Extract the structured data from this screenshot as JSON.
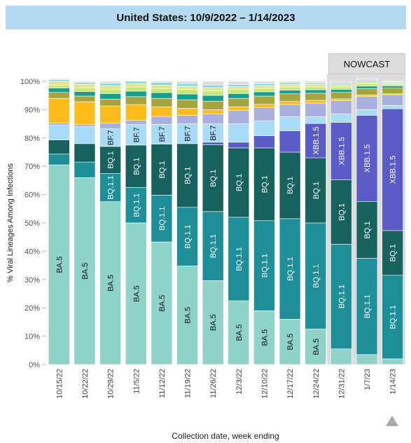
{
  "header": {
    "title": "United States: 10/9/2022 – 1/14/2023"
  },
  "nowcast_label": "NOWCAST",
  "colors": {
    "BA.5": "#8fd3c8",
    "BQ.1.1": "#1e8e98",
    "BQ.1": "#17615f",
    "XBB.1.5": "#5a5bc6",
    "BF.7": "#a8dcf6",
    "other1": "#aab0de",
    "other2": "#fdbc1c",
    "other3": "#a7a43d",
    "other4": "#169e8c",
    "other5": "#c6e87a",
    "other6": "#e3e58a",
    "other7": "#7fd7e5",
    "other8": "#dddddd",
    "nowcast_bg": "#dcdcdc"
  },
  "chart_data": {
    "type": "bar",
    "stacked": true,
    "ylabel": "% Viral Lineages Among Infections",
    "xlabel": "Collection date, week ending",
    "ylim": [
      0,
      100
    ],
    "yticks": [
      "0%",
      "10%",
      "20%",
      "30%",
      "40%",
      "50%",
      "60%",
      "70%",
      "80%",
      "90%",
      "100%"
    ],
    "categories": [
      "10/15/22",
      "10/22/22",
      "10/29/22",
      "11/5/22",
      "11/12/22",
      "11/19/22",
      "11/26/22",
      "12/3/22",
      "12/10/22",
      "12/17/22",
      "12/24/22",
      "12/31/22",
      "1/7/23",
      "1/14/23"
    ],
    "nowcast_start_index": 11,
    "series": [
      {
        "key": "BA.5",
        "values": [
          70.5,
          66.0,
          57.5,
          50.0,
          43.3,
          34.8,
          29.6,
          22.5,
          19.0,
          16.0,
          12.5,
          5.5,
          3.5,
          2.0
        ],
        "label": "BA.5",
        "label_from": 0,
        "label_to": 10
      },
      {
        "key": "BQ.1.1",
        "values": [
          3.8,
          5.5,
          10.0,
          12.5,
          16.5,
          20.7,
          24.4,
          29.5,
          31.8,
          35.5,
          37.5,
          37.0,
          34.0,
          29.5
        ],
        "label": "BQ.1.1",
        "label_from": 2,
        "label_to": 13
      },
      {
        "key": "BQ.1",
        "values": [
          5.0,
          6.5,
          9.5,
          15.0,
          18.0,
          22.5,
          23.6,
          24.5,
          25.7,
          23.5,
          23.0,
          22.7,
          20.0,
          15.8
        ],
        "label": "BQ.1",
        "label_from": 2,
        "label_to": 13
      },
      {
        "key": "XBB.1.5",
        "values": [
          0,
          0,
          0,
          0,
          0,
          0,
          0.9,
          2.0,
          4.3,
          7.5,
          12.1,
          20.3,
          30.5,
          43.0
        ],
        "label": "XBB.1.5",
        "label_from": 10,
        "label_to": 13
      },
      {
        "key": "BF.7",
        "values": [
          5.2,
          6.0,
          6.2,
          7.2,
          7.0,
          7.0,
          6.5,
          6.5,
          5.2,
          5.0,
          2.4,
          3.0,
          2.0,
          1.2
        ],
        "label": "BF.7",
        "label_from": 2,
        "label_to": 6
      },
      {
        "key": "other1",
        "values": [
          0.8,
          0.8,
          2.1,
          1.6,
          2.8,
          3.0,
          3.5,
          4.7,
          4.7,
          4.3,
          4.8,
          4.7,
          4.7,
          3.8
        ]
      },
      {
        "key": "other2",
        "values": [
          8.7,
          8.0,
          6.0,
          5.5,
          3.4,
          2.5,
          1.5,
          1.3,
          1.2,
          1.1,
          1.0,
          0.6,
          0.5,
          0.3
        ]
      },
      {
        "key": "other3",
        "values": [
          2.1,
          2.0,
          2.4,
          2.8,
          3.0,
          3.0,
          3.0,
          3.0,
          2.9,
          2.7,
          2.5,
          2.3,
          2.2,
          2.0
        ]
      },
      {
        "key": "other4",
        "values": [
          1.5,
          1.6,
          2.0,
          1.9,
          2.0,
          2.0,
          2.0,
          1.7,
          1.5,
          1.3,
          1.2,
          1.0,
          0.9,
          0.8
        ]
      },
      {
        "key": "other5",
        "values": [
          1.0,
          1.2,
          1.5,
          1.5,
          1.5,
          1.6,
          1.6,
          1.4,
          1.2,
          1.1,
          1.0,
          0.9,
          0.8,
          0.6
        ]
      },
      {
        "key": "other6",
        "values": [
          1.4,
          1.4,
          1.3,
          1.2,
          1.2,
          1.2,
          1.2,
          1.1,
          1.0,
          0.9,
          0.9,
          0.8,
          0.7,
          0.5
        ]
      },
      {
        "key": "other7",
        "values": [
          0.6,
          0.6,
          0.8,
          0.8,
          0.9,
          0.9,
          0.8,
          0.7,
          0.6,
          0.6,
          0.5,
          0.5,
          0.5,
          0.3
        ]
      },
      {
        "key": "other8",
        "values": [
          0.4,
          0.4,
          0.7,
          0.0,
          0.4,
          0.8,
          1.4,
          1.1,
          0.9,
          0.5,
          0.6,
          0.7,
          0.7,
          0.2
        ]
      }
    ]
  }
}
